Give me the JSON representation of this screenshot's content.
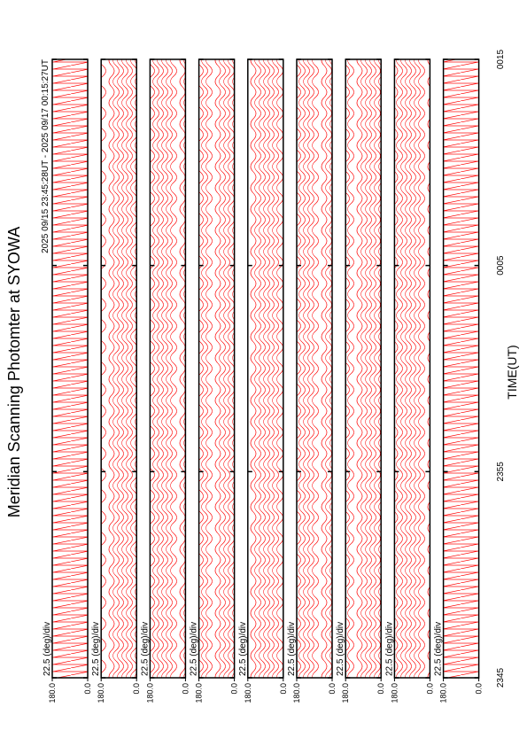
{
  "chart_data": {
    "type": "line",
    "title": "Meridian Scanning Photomter at SYOWA",
    "subtitle": "2025 09/15 23:45:28UT - 2025 09/17 00:15:27UT",
    "x_label": "TIME(UT)",
    "xlim": [
      0,
      30
    ],
    "xticks": [
      {
        "value": 0,
        "label": "2345"
      },
      {
        "value": 10,
        "label": "2355"
      },
      {
        "value": 20,
        "label": "0005"
      },
      {
        "value": 30,
        "label": "0015"
      }
    ],
    "ylim": [
      0,
      180
    ],
    "yticks": [
      {
        "value": 0,
        "label": "0.0"
      },
      {
        "value": 180,
        "label": "180.0"
      }
    ],
    "color": "#ff0000",
    "panels": [
      {
        "scale_label": "22.5 (deg)/div"
      },
      {
        "scale_label": "22.5 (deg)/div"
      },
      {
        "scale_label": "22.5 (deg)/div"
      },
      {
        "scale_label": "22.5 (deg)/div"
      },
      {
        "scale_label": "22.5 (deg)/div"
      },
      {
        "scale_label": "22.5 (deg)/div"
      },
      {
        "scale_label": "22.5 (deg)/div"
      },
      {
        "scale_label": "22.5 (deg)/div"
      },
      {
        "scale_label": "22.5 (deg)/div"
      }
    ]
  }
}
